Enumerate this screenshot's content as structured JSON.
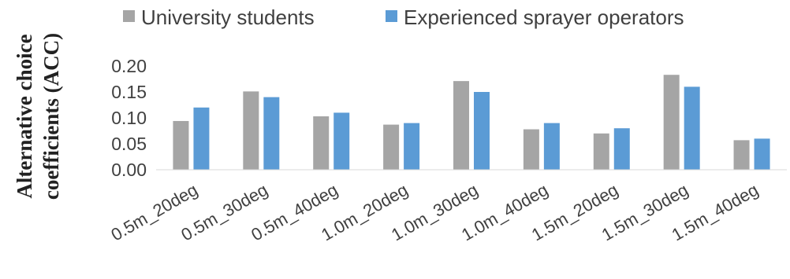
{
  "chart_data": {
    "type": "bar",
    "ylabel_lines": [
      "Alternative choice",
      "coefficients (ACC)"
    ],
    "categories": [
      "0.5m_20deg",
      "0.5m_30deg",
      "0.5m_40deg",
      "1.0m_20deg",
      "1.0m_30deg",
      "1.0m_40deg",
      "1.5m_20deg",
      "1.5m_30deg",
      "1.5m_40deg"
    ],
    "series": [
      {
        "name": "University students",
        "color": "#a5a5a5",
        "values": [
          0.094,
          0.151,
          0.103,
          0.087,
          0.171,
          0.078,
          0.07,
          0.183,
          0.057
        ]
      },
      {
        "name": "Experienced sprayer operators",
        "color": "#5b9bd5",
        "values": [
          0.12,
          0.14,
          0.11,
          0.09,
          0.15,
          0.09,
          0.08,
          0.16,
          0.06
        ]
      }
    ],
    "yticks": [
      "0.00",
      "0.05",
      "0.10",
      "0.15",
      "0.20"
    ],
    "ylim": [
      0,
      0.2
    ],
    "legend_position": "top",
    "grid": false
  }
}
